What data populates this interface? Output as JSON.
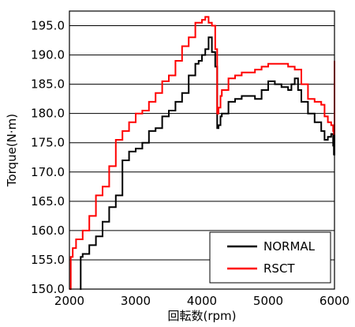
{
  "chart_data": {
    "type": "line",
    "xlabel": "回転数(rpm)",
    "ylabel": "Torque(N·m)",
    "xlim": [
      2000,
      6000
    ],
    "ylim": [
      150.0,
      197.5
    ],
    "xticks": [
      "2000",
      "3000",
      "4000",
      "5000",
      "6000"
    ],
    "yticks": [
      "150.0",
      "155.0",
      "160.0",
      "165.0",
      "170.0",
      "175.0",
      "180.0",
      "185.0",
      "190.0",
      "195.0"
    ],
    "grid": "horizontal",
    "legend_position": "bottom-right",
    "legend": [
      "NORMAL",
      "RSCT"
    ],
    "colors": {
      "NORMAL": "#000000",
      "RSCT": "#ff0000"
    },
    "series": [
      {
        "name": "NORMAL",
        "color": "#000000",
        "x": [
          2160,
          2170,
          2200,
          2300,
          2400,
          2500,
          2600,
          2700,
          2800,
          2900,
          3000,
          3100,
          3200,
          3300,
          3400,
          3500,
          3600,
          3700,
          3800,
          3900,
          3950,
          4000,
          4050,
          4100,
          4150,
          4200,
          4230,
          4250,
          4280,
          4300,
          4400,
          4500,
          4600,
          4700,
          4800,
          4900,
          5000,
          5100,
          5200,
          5300,
          5350,
          5400,
          5450,
          5500,
          5600,
          5700,
          5800,
          5850,
          5900,
          5950,
          5980,
          5990,
          6000
        ],
        "y": [
          150.0,
          155.5,
          156.0,
          157.5,
          159.0,
          161.5,
          164.0,
          166.0,
          172.0,
          173.5,
          174.0,
          175.0,
          177.0,
          177.5,
          179.5,
          180.5,
          182.0,
          183.5,
          186.5,
          188.5,
          189.0,
          190.0,
          191.0,
          193.0,
          190.5,
          188.0,
          177.5,
          178.0,
          179.5,
          180.0,
          182.0,
          182.5,
          183.0,
          183.0,
          182.5,
          184.0,
          185.5,
          185.0,
          184.5,
          184.0,
          185.0,
          186.0,
          184.0,
          182.0,
          180.0,
          178.5,
          177.0,
          175.5,
          176.0,
          176.5,
          174.5,
          173.0,
          176.5
        ]
      },
      {
        "name": "RSCT",
        "color": "#ff0000",
        "x": [
          2000,
          2020,
          2050,
          2100,
          2200,
          2300,
          2400,
          2500,
          2600,
          2700,
          2800,
          2900,
          3000,
          3100,
          3200,
          3300,
          3400,
          3500,
          3600,
          3700,
          3800,
          3900,
          4000,
          4050,
          4100,
          4150,
          4200,
          4230,
          4250,
          4280,
          4300,
          4400,
          4500,
          4600,
          4700,
          4800,
          4900,
          5000,
          5100,
          5200,
          5300,
          5400,
          5500,
          5600,
          5700,
          5800,
          5850,
          5900,
          5950,
          5980,
          5990,
          6000
        ],
        "y": [
          150.0,
          155.5,
          157.0,
          158.5,
          160.0,
          162.5,
          166.0,
          167.5,
          171.0,
          175.5,
          177.0,
          178.5,
          180.0,
          180.5,
          182.0,
          183.5,
          185.5,
          186.5,
          189.0,
          191.5,
          193.0,
          195.5,
          196.0,
          196.5,
          195.5,
          195.0,
          191.0,
          180.0,
          181.0,
          183.0,
          184.0,
          186.0,
          186.5,
          187.0,
          187.0,
          187.5,
          188.0,
          188.5,
          188.5,
          188.5,
          188.0,
          187.5,
          185.0,
          182.5,
          182.0,
          181.5,
          179.5,
          178.5,
          178.0,
          177.0,
          176.5,
          189.0
        ]
      }
    ]
  }
}
